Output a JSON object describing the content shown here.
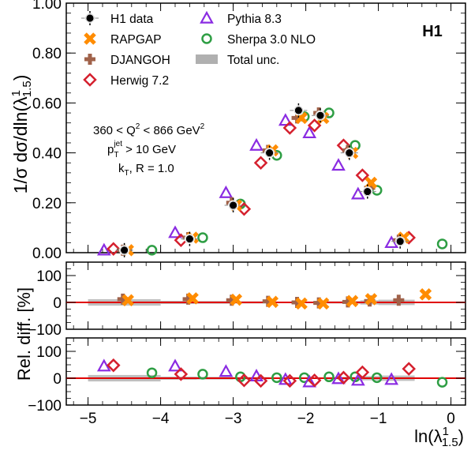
{
  "chart_data": {
    "type": "scatter",
    "experiment_label": "H1",
    "ylabel_main": "1/σ dσ/dln(λ",
    "ylabel_main_sup": "1",
    "ylabel_main_sub": "1.5",
    "ylabel_main_close": ")",
    "ylabel_ratio": "Rel. diff. [%]",
    "xlabel": "ln(λ",
    "xlabel_sup": "1",
    "xlabel_sub": "1.5",
    "xlabel_close": ")",
    "xlim": [
      -5.3,
      0.2
    ],
    "ylim_main": [
      0,
      1.0
    ],
    "ylim_ratio": [
      -100,
      150
    ],
    "x_ticks": [
      "-5",
      "-4",
      "-3",
      "-2",
      "-1",
      "0"
    ],
    "x_tick_values": [
      -5,
      -4,
      -3,
      -2,
      -1,
      0
    ],
    "y_ticks_main": [
      "0.00",
      "0.20",
      "0.40",
      "0.60",
      "0.80",
      "1.00"
    ],
    "y_tick_values_main": [
      0,
      0.2,
      0.4,
      0.6,
      0.8,
      1.0
    ],
    "y_ticks_ratio": [
      "-100",
      "0",
      "100"
    ],
    "y_tick_values_ratio": [
      -100,
      0,
      100
    ],
    "phase_space": {
      "line1_pre": "360 < Q",
      "line1_sup": "2",
      "line1_post": " < 866 GeV",
      "line1_sup2": "2",
      "line2_pre": "p",
      "line2_sub": "T",
      "line2_sup": "jet",
      "line2_post": " > 10 GeV",
      "line3_pre": "k",
      "line3_sub": "T",
      "line3_post": ", R = 1.0"
    },
    "bin_edges": [
      -5.0,
      -4.0,
      -3.5,
      -3.0,
      -2.5,
      -2.0,
      -1.75,
      -1.5,
      -1.25,
      -1.0,
      -0.5
    ],
    "legend": [
      {
        "name": "H1 data",
        "marker": "data",
        "color": "#000000"
      },
      {
        "name": "RAPGAP",
        "marker": "cross-x",
        "color": "#ff8c00"
      },
      {
        "name": "DJANGOH",
        "marker": "plus",
        "color": "#a0624a"
      },
      {
        "name": "Herwig 7.2",
        "marker": "diamond",
        "color": "#d5202e"
      },
      {
        "name": "Pythia 8.3",
        "marker": "triangle",
        "color": "#8a2be2"
      },
      {
        "name": "Sherpa 3.0 NLO",
        "marker": "circle",
        "color": "#2e9e44"
      },
      {
        "name": "Total unc.",
        "marker": "band",
        "color": "#b0b0b0"
      }
    ],
    "series": [
      {
        "name": "H1 data",
        "marker": "data",
        "color": "#000000",
        "x": [
          -4.5,
          -3.6,
          -3.0,
          -2.5,
          -2.1,
          -1.8,
          -1.4,
          -1.15,
          -0.7
        ],
        "y": [
          0.01,
          0.055,
          0.19,
          0.4,
          0.57,
          0.55,
          0.4,
          0.245,
          0.045
        ]
      },
      {
        "name": "RAPGAP",
        "marker": "cross-x",
        "color": "#ff8c00",
        "x": [
          -4.45,
          -3.56,
          -2.96,
          -2.46,
          -2.06,
          -1.76,
          -1.36,
          -1.1,
          -0.65
        ],
        "y": [
          0.01,
          0.06,
          0.19,
          0.41,
          0.54,
          0.54,
          0.4,
          0.28,
          0.06
        ],
        "ratio_x": [
          -4.45,
          -3.56,
          -2.96,
          -2.46,
          -2.06,
          -1.76,
          -1.36,
          -1.1,
          -0.35
        ],
        "ratio": [
          8,
          15,
          10,
          2,
          -4,
          -4,
          5,
          12,
          30
        ]
      },
      {
        "name": "DJANGOH",
        "marker": "plus",
        "color": "#a0624a",
        "x": [
          -4.52,
          -3.62,
          -3.02,
          -2.52,
          -2.12,
          -1.82,
          -1.42,
          -1.12,
          -0.72
        ],
        "y": [
          0.01,
          0.06,
          0.2,
          0.41,
          0.54,
          0.56,
          0.41,
          0.26,
          0.05
        ],
        "ratio_x": [
          -4.52,
          -3.62,
          -3.02,
          -2.52,
          -2.12,
          -1.82,
          -1.42,
          -1.12,
          -0.72
        ],
        "ratio": [
          12,
          12,
          8,
          4,
          0,
          -2,
          2,
          5,
          8
        ]
      },
      {
        "name": "Herwig 7.2",
        "marker": "diamond",
        "color": "#d5202e",
        "x": [
          -4.65,
          -3.72,
          -2.85,
          -2.62,
          -2.22,
          -1.88,
          -1.48,
          -1.22,
          -0.58
        ],
        "y": [
          0.015,
          0.05,
          0.175,
          0.36,
          0.5,
          0.51,
          0.43,
          0.31,
          0.06
        ],
        "ratio_x": [
          -4.65,
          -3.72,
          -2.85,
          -2.62,
          -2.22,
          -1.88,
          -1.48,
          -1.22,
          -0.58
        ],
        "ratio": [
          48,
          15,
          -8,
          -10,
          -10,
          -8,
          2,
          22,
          35
        ]
      },
      {
        "name": "Pythia 8.3",
        "marker": "triangle",
        "color": "#8a2be2",
        "x": [
          -4.78,
          -3.8,
          -3.1,
          -2.68,
          -2.28,
          -1.95,
          -1.55,
          -1.28,
          -0.82
        ],
        "y": [
          0.01,
          0.08,
          0.24,
          0.43,
          0.53,
          0.48,
          0.35,
          0.235,
          0.04
        ],
        "ratio_x": [
          -4.78,
          -3.8,
          -3.1,
          -2.68,
          -2.28,
          -1.95,
          -1.55,
          -1.28,
          -0.82
        ],
        "ratio": [
          45,
          45,
          25,
          8,
          -5,
          -14,
          -2,
          -8,
          -5
        ]
      },
      {
        "name": "Sherpa 3.0 NLO",
        "marker": "circle",
        "color": "#2e9e44",
        "x": [
          -4.12,
          -3.42,
          -2.9,
          -2.4,
          -2.02,
          -1.68,
          -1.32,
          -1.02,
          -0.12
        ],
        "y": [
          0.01,
          0.06,
          0.195,
          0.39,
          0.545,
          0.56,
          0.43,
          0.25,
          0.035
        ],
        "ratio_x": [
          -4.12,
          -3.42,
          -2.9,
          -2.4,
          -2.02,
          -1.68,
          -1.32,
          -1.02,
          -0.12
        ],
        "ratio": [
          20,
          15,
          5,
          2,
          2,
          5,
          5,
          2,
          -15
        ]
      }
    ]
  }
}
